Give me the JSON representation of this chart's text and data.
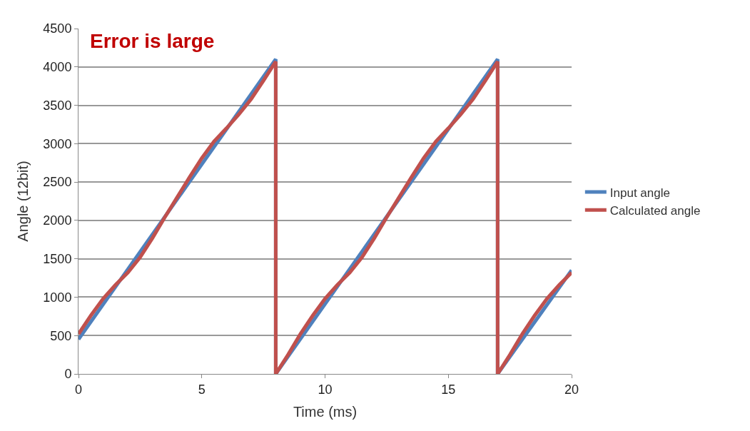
{
  "chart_data": {
    "type": "line",
    "xlabel": "Time (ms)",
    "ylabel": "Angle (12bit)",
    "xlim": [
      0,
      20
    ],
    "xticks": [
      0,
      5,
      10,
      15,
      20
    ],
    "ylim": [
      0,
      4500
    ],
    "yticks": [
      0,
      500,
      1000,
      1500,
      2000,
      2500,
      3000,
      3500,
      4000,
      4500
    ],
    "grid": "y",
    "legend": "right",
    "marker": "none",
    "line_style": "solid",
    "series": [
      {
        "name": "Input angle",
        "color": "#4f81bd",
        "x": [
          0,
          8,
          8,
          17,
          17,
          20
        ],
        "values": [
          450,
          4100,
          0,
          4100,
          0,
          1350
        ]
      },
      {
        "name": "Calculated angle",
        "color": "#c0504d",
        "x": [
          0,
          0.5,
          1,
          1.5,
          2,
          2.5,
          3,
          3.5,
          4,
          4.5,
          5,
          5.5,
          6,
          6.5,
          7,
          7.5,
          8,
          8,
          8.5,
          9,
          9.5,
          10,
          10.5,
          11,
          11.5,
          12,
          12.5,
          13,
          13.5,
          14,
          14.5,
          15,
          15.5,
          16,
          16.5,
          17,
          17,
          17.5,
          18,
          18.5,
          19,
          19.5,
          20
        ],
        "values": [
          520,
          760,
          980,
          1160,
          1320,
          1520,
          1770,
          2040,
          2300,
          2560,
          2810,
          3030,
          3200,
          3380,
          3580,
          3820,
          4070,
          0,
          250,
          520,
          760,
          980,
          1160,
          1320,
          1520,
          1770,
          2040,
          2300,
          2560,
          2810,
          3030,
          3200,
          3380,
          3580,
          3820,
          4070,
          0,
          250,
          520,
          760,
          980,
          1160,
          1320
        ]
      }
    ],
    "annotations": [
      "Error is large"
    ]
  }
}
